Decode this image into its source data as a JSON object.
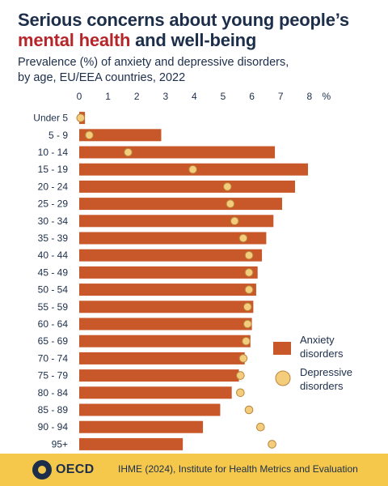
{
  "header": {
    "title_line1": "Serious concerns about young people’s",
    "title_highlight": "mental health",
    "title_rest": " and well-being",
    "subtitle_line1": "Prevalence (%) of anxiety and depressive disorders,",
    "subtitle_line2": "by age, EU/EEA countries, 2022"
  },
  "footer": {
    "logo_text": "OECD",
    "source": "IHME (2024), Institute for Health Metrics and Evaluation"
  },
  "colors": {
    "title": "#1c2e4a",
    "highlight": "#b4262a",
    "bar": "#c8582a",
    "dot_fill": "#f3cd7c",
    "dot_stroke": "#b8863c",
    "footer_bg": "#f5c84c"
  },
  "chart_data": {
    "type": "bar",
    "orientation": "horizontal",
    "categories": [
      "Under 5",
      "5 - 9",
      "10 - 14",
      "15 - 19",
      "20 - 24",
      "25 - 29",
      "30 - 34",
      "35 - 39",
      "40 - 44",
      "45 - 49",
      "50 - 54",
      "55 - 59",
      "60 - 64",
      "65 - 69",
      "70 - 74",
      "75 - 79",
      "80 - 84",
      "85 - 89",
      "90 - 94",
      "95+"
    ],
    "series": [
      {
        "name": "Anxiety disorders",
        "type": "bar",
        "values": [
          0.2,
          2.85,
          6.8,
          7.95,
          7.5,
          7.05,
          6.75,
          6.5,
          6.35,
          6.2,
          6.15,
          6.05,
          6.0,
          5.95,
          5.75,
          5.55,
          5.3,
          4.9,
          4.3,
          3.6
        ]
      },
      {
        "name": "Depressive disorders",
        "type": "scatter",
        "values": [
          0.05,
          0.35,
          1.7,
          3.95,
          5.15,
          5.25,
          5.4,
          5.7,
          5.9,
          5.9,
          5.9,
          5.85,
          5.85,
          5.8,
          5.7,
          5.6,
          5.6,
          5.9,
          6.3,
          6.7
        ]
      }
    ],
    "x_ticks": [
      "0",
      "1",
      "2",
      "3",
      "4",
      "5",
      "6",
      "7",
      "8"
    ],
    "x_unit": "%",
    "xlim": [
      0,
      8
    ],
    "grid": false,
    "legend_position": "right"
  }
}
